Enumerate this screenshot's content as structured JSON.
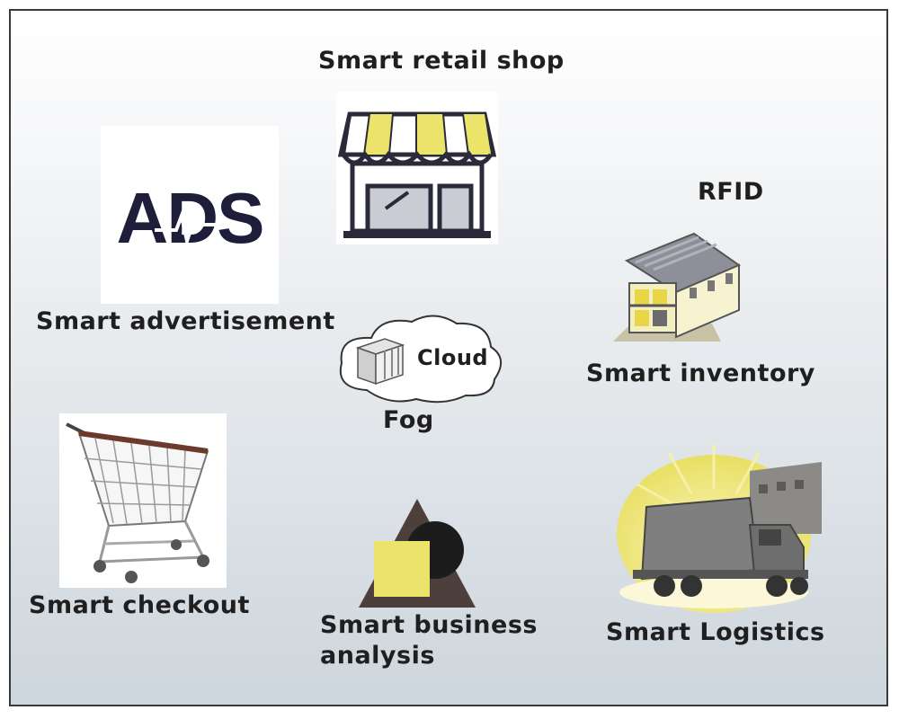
{
  "labels": {
    "smart_retail_shop": "Smart retail shop",
    "smart_advertisement": "Smart advertisement",
    "rfid": "RFID",
    "smart_inventory": "Smart inventory",
    "cloud": "Cloud",
    "fog": "Fog",
    "smart_checkout": "Smart checkout",
    "smart_business_analysis_line1": "Smart business",
    "smart_business_analysis_line2": "analysis",
    "smart_logistics": "Smart Logistics"
  },
  "ads_logo_text": "ADS",
  "icons": [
    "shop-icon",
    "ads-logo-icon",
    "warehouse-icon",
    "server-icon",
    "shopping-cart-icon",
    "shapes-icon",
    "truck-icon"
  ],
  "colors": {
    "accent_yellow": "#ece46a",
    "dark": "#2a2a3a",
    "triangle": "#4a3f3c",
    "frame_border": "#3a3a3a"
  }
}
